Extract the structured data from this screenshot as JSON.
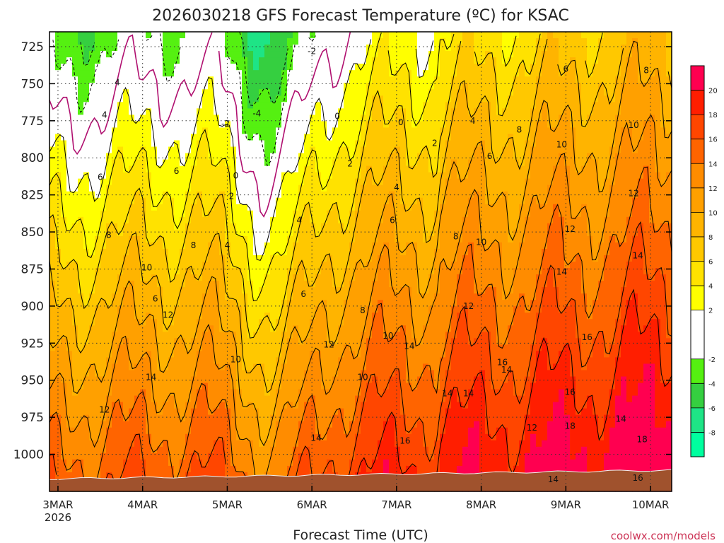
{
  "chart_data": {
    "type": "heatmap",
    "title": "2026030218 GFS Forecast Temperature (ºC) for KSAC",
    "xlabel": "Forecast Time (UTC)",
    "ylabel": "",
    "credit": "coolwx.com/models",
    "y_axis": {
      "reversed": true,
      "range": [
        715,
        1025
      ],
      "ticks": [
        725,
        750,
        775,
        800,
        825,
        850,
        875,
        900,
        925,
        950,
        975,
        1000
      ]
    },
    "x_axis": {
      "range_days": [
        2.9,
        10.25
      ],
      "ticks": [
        {
          "day": 3,
          "label": "3MAR",
          "sub": "2026"
        },
        {
          "day": 4,
          "label": "4MAR",
          "sub": ""
        },
        {
          "day": 5,
          "label": "5MAR",
          "sub": ""
        },
        {
          "day": 6,
          "label": "6MAR",
          "sub": ""
        },
        {
          "day": 7,
          "label": "7MAR",
          "sub": ""
        },
        {
          "day": 8,
          "label": "8MAR",
          "sub": ""
        },
        {
          "day": 9,
          "label": "9MAR",
          "sub": ""
        },
        {
          "day": 10,
          "label": "10MAR",
          "sub": ""
        }
      ]
    },
    "grid": true,
    "colorbar": {
      "placement": "right",
      "ticks": [
        20,
        18,
        16,
        14,
        12,
        10,
        8,
        6,
        4,
        2,
        -2,
        -4,
        -6,
        -8
      ],
      "bins": [
        {
          "from": -10,
          "to": -8,
          "color": "#00ff9f"
        },
        {
          "from": -8,
          "to": -6,
          "color": "#1ee486"
        },
        {
          "from": -6,
          "to": -4,
          "color": "#35cf40"
        },
        {
          "from": -4,
          "to": -2,
          "color": "#55f011"
        },
        {
          "from": -2,
          "to": 2,
          "color": "#ffffff"
        },
        {
          "from": 2,
          "to": 4,
          "color": "#ffff00"
        },
        {
          "from": 4,
          "to": 6,
          "color": "#ffe200"
        },
        {
          "from": 6,
          "to": 8,
          "color": "#ffc800"
        },
        {
          "from": 8,
          "to": 10,
          "color": "#ffb400"
        },
        {
          "from": 10,
          "to": 12,
          "color": "#ffa000"
        },
        {
          "from": 12,
          "to": 14,
          "color": "#ff8c00"
        },
        {
          "from": 14,
          "to": 16,
          "color": "#ff6400"
        },
        {
          "from": 16,
          "to": 18,
          "color": "#ff4600"
        },
        {
          "from": 18,
          "to": 20,
          "color": "#ff1e00"
        },
        {
          "from": 20,
          "to": 22,
          "color": "#ff0050"
        }
      ]
    },
    "contour_labels": [
      {
        "day": 6.0,
        "p": 728,
        "value": "-2"
      },
      {
        "day": 5.35,
        "p": 770,
        "value": "-4"
      },
      {
        "day": 4.98,
        "p": 777,
        "value": "-2"
      },
      {
        "day": 6.3,
        "p": 772,
        "value": "0"
      },
      {
        "day": 7.05,
        "p": 776,
        "value": "0"
      },
      {
        "day": 5.1,
        "p": 812,
        "value": "0"
      },
      {
        "day": 6.45,
        "p": 804,
        "value": "2"
      },
      {
        "day": 7.45,
        "p": 790,
        "value": "2"
      },
      {
        "day": 5.05,
        "p": 826,
        "value": "2"
      },
      {
        "day": 3.7,
        "p": 749,
        "value": "4"
      },
      {
        "day": 3.55,
        "p": 771,
        "value": "4"
      },
      {
        "day": 5.0,
        "p": 859,
        "value": "4"
      },
      {
        "day": 5.85,
        "p": 842,
        "value": "4"
      },
      {
        "day": 7.0,
        "p": 820,
        "value": "4"
      },
      {
        "day": 7.9,
        "p": 775,
        "value": "4"
      },
      {
        "day": 9.0,
        "p": 740,
        "value": "6"
      },
      {
        "day": 3.5,
        "p": 813,
        "value": "6"
      },
      {
        "day": 4.4,
        "p": 809,
        "value": "6"
      },
      {
        "day": 4.15,
        "p": 895,
        "value": "6"
      },
      {
        "day": 5.9,
        "p": 892,
        "value": "6"
      },
      {
        "day": 6.95,
        "p": 842,
        "value": "6"
      },
      {
        "day": 8.1,
        "p": 799,
        "value": "6"
      },
      {
        "day": 9.95,
        "p": 741,
        "value": "8"
      },
      {
        "day": 3.6,
        "p": 852,
        "value": "8"
      },
      {
        "day": 4.6,
        "p": 859,
        "value": "8"
      },
      {
        "day": 6.6,
        "p": 903,
        "value": "8"
      },
      {
        "day": 7.7,
        "p": 853,
        "value": "8"
      },
      {
        "day": 8.45,
        "p": 781,
        "value": "8"
      },
      {
        "day": 4.05,
        "p": 874,
        "value": "10"
      },
      {
        "day": 5.1,
        "p": 936,
        "value": "10"
      },
      {
        "day": 6.6,
        "p": 948,
        "value": "10"
      },
      {
        "day": 6.9,
        "p": 920,
        "value": "10"
      },
      {
        "day": 8.0,
        "p": 857,
        "value": "10"
      },
      {
        "day": 8.95,
        "p": 791,
        "value": "10"
      },
      {
        "day": 9.8,
        "p": 778,
        "value": "10"
      },
      {
        "day": 4.3,
        "p": 906,
        "value": "12"
      },
      {
        "day": 3.55,
        "p": 970,
        "value": "12"
      },
      {
        "day": 6.2,
        "p": 926,
        "value": "12"
      },
      {
        "day": 7.85,
        "p": 900,
        "value": "12"
      },
      {
        "day": 8.6,
        "p": 982,
        "value": "12"
      },
      {
        "day": 9.05,
        "p": 848,
        "value": "12"
      },
      {
        "day": 9.8,
        "p": 824,
        "value": "12"
      },
      {
        "day": 4.1,
        "p": 948,
        "value": "14"
      },
      {
        "day": 6.05,
        "p": 989,
        "value": "14"
      },
      {
        "day": 7.15,
        "p": 927,
        "value": "14"
      },
      {
        "day": 7.6,
        "p": 959,
        "value": "14"
      },
      {
        "day": 7.85,
        "p": 959,
        "value": "14"
      },
      {
        "day": 8.3,
        "p": 943,
        "value": "14"
      },
      {
        "day": 8.95,
        "p": 877,
        "value": "14"
      },
      {
        "day": 9.85,
        "p": 866,
        "value": "14"
      },
      {
        "day": 9.65,
        "p": 976,
        "value": "14"
      },
      {
        "day": 8.85,
        "p": 1017,
        "value": "14"
      },
      {
        "day": 7.1,
        "p": 991,
        "value": "16"
      },
      {
        "day": 8.25,
        "p": 938,
        "value": "16"
      },
      {
        "day": 9.05,
        "p": 958,
        "value": "16"
      },
      {
        "day": 9.25,
        "p": 921,
        "value": "16"
      },
      {
        "day": 9.85,
        "p": 1016,
        "value": "16"
      },
      {
        "day": 9.05,
        "p": 981,
        "value": "18"
      },
      {
        "day": 9.9,
        "p": 990,
        "value": "18"
      }
    ]
  }
}
